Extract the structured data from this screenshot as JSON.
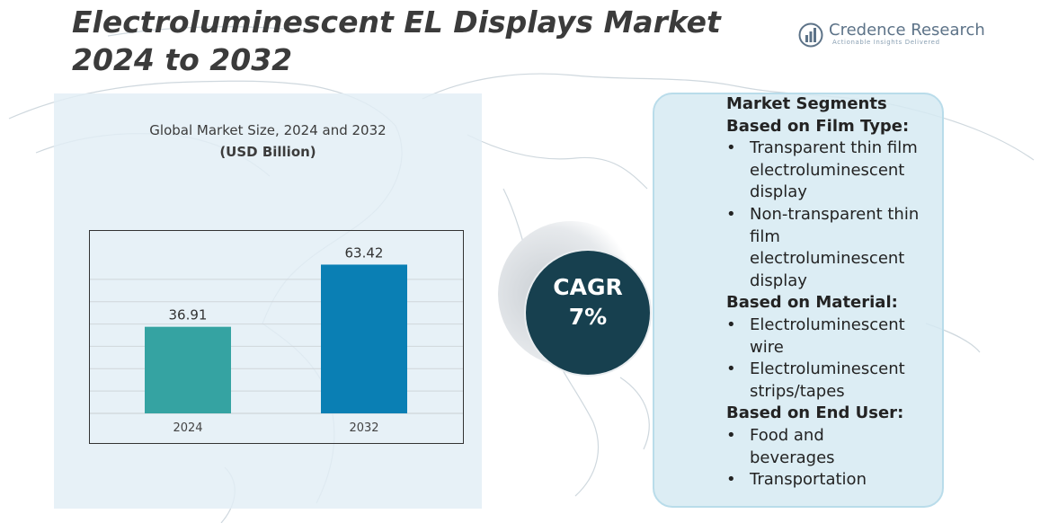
{
  "page": {
    "title": "Electroluminescent EL Displays Market 2024 to 2032"
  },
  "brand": {
    "name": "Credence Research",
    "tagline": "Actionable Insights Delivered",
    "icon": "bar-chart-globe-icon"
  },
  "chart_panel": {
    "title": "Global Market Size, 2024 and 2032",
    "units": "(USD Billion)"
  },
  "chart_data": {
    "type": "bar",
    "categories": [
      "2024",
      "2032"
    ],
    "values": [
      36.91,
      63.42
    ],
    "value_labels": [
      "36.91",
      "63.42"
    ],
    "title": "Global Market Size, 2024 and 2032",
    "ylabel": "(USD Billion)",
    "ylim": [
      0,
      70
    ],
    "grid": true,
    "bar_colors": [
      "#35a3a2",
      "#0a7fb4"
    ]
  },
  "cagr": {
    "label": "CAGR",
    "value": "7%"
  },
  "segments": {
    "heading": "Market Segments",
    "groups": [
      {
        "heading": "Based on Film Type:",
        "items": [
          [
            "Transparent thin film",
            "electroluminescent",
            "display"
          ],
          [
            "Non-transparent thin",
            "film",
            "electroluminescent",
            "display"
          ]
        ]
      },
      {
        "heading": "Based on Material:",
        "items": [
          [
            "Electroluminescent",
            "wire"
          ],
          [
            "Electroluminescent",
            "strips/tapes"
          ]
        ]
      },
      {
        "heading": "Based on End User:",
        "items": [
          [
            "Food and",
            "beverages"
          ],
          [
            "Transportation"
          ]
        ]
      }
    ]
  },
  "colors": {
    "title": "#3b3b3b",
    "cagr_bg": "#17404f",
    "panel_bg": "#e2eef5",
    "segment_panel_bg": "#d6eaf2",
    "map_line": "#c9d3da"
  }
}
